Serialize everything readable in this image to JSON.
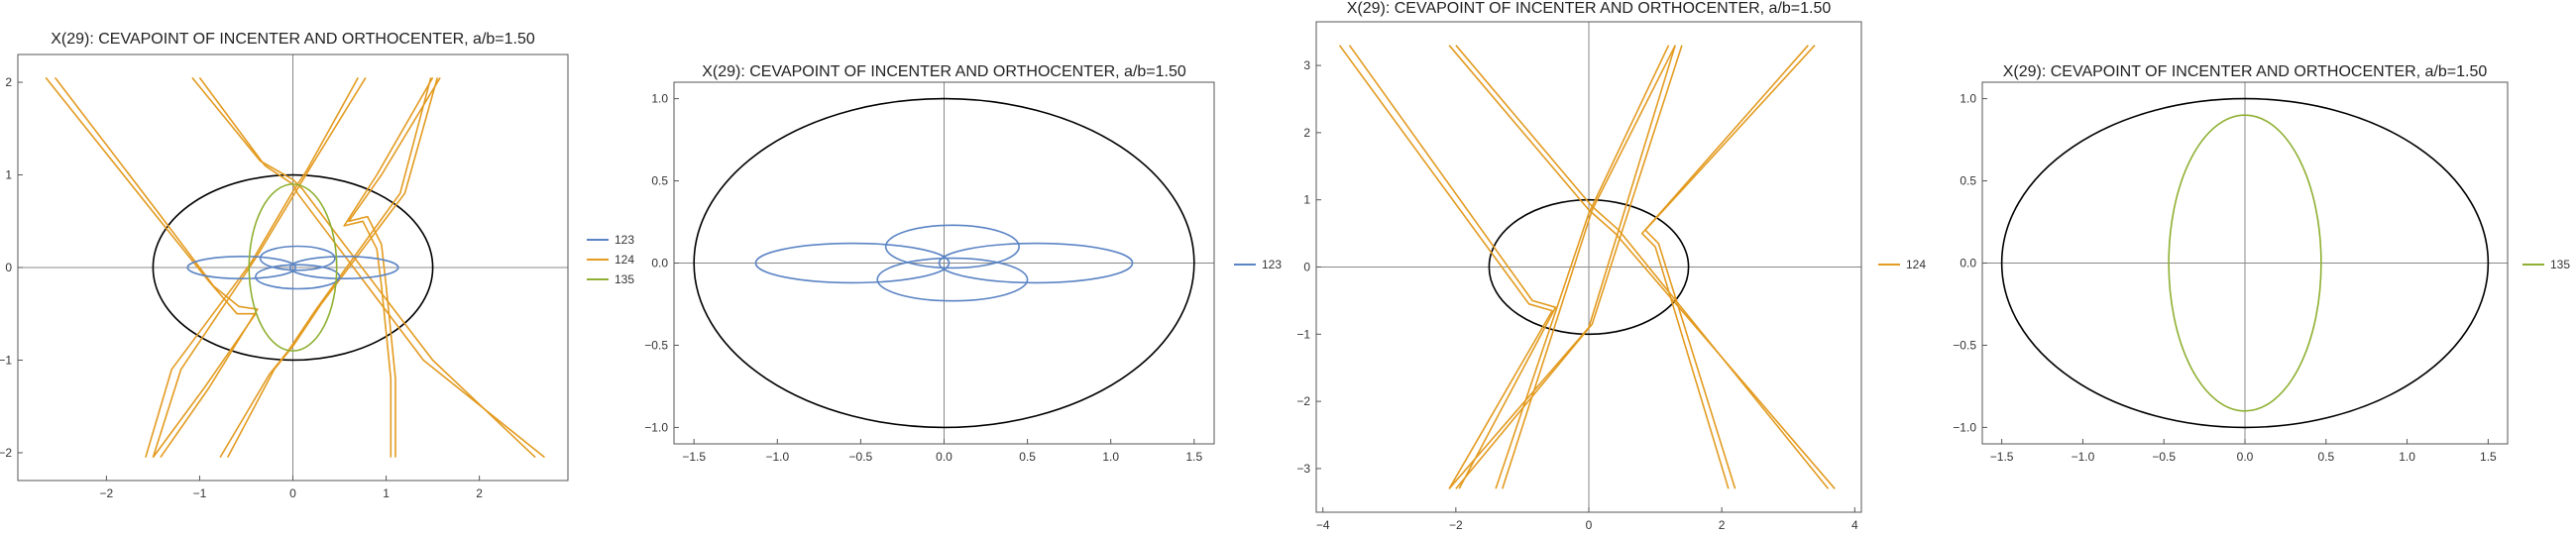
{
  "colors": {
    "series_123": "#5b84c4",
    "series_124": "#e39b20",
    "series_135": "#8fb032",
    "ellipse": "#000000",
    "axis": "#888888",
    "frame": "#555555",
    "text": "#333333"
  },
  "chart_data": [
    {
      "type": "line",
      "title": "X(29): CEVAPOINT OF INCENTER AND ORTHOCENTER, a/b=1.50",
      "xlim": [
        -2.95,
        2.95
      ],
      "ylim": [
        -2.3,
        2.3
      ],
      "xticks": [
        "-2",
        "-1",
        "0",
        "1",
        "2"
      ],
      "yticks": [
        "-2",
        "-1",
        "0",
        "1",
        "2"
      ],
      "grid": false,
      "legend_position": "right",
      "legend": [
        {
          "label": "123",
          "color": "#5b84c4"
        },
        {
          "label": "124",
          "color": "#e39b20"
        },
        {
          "label": "135",
          "color": "#8fb032"
        }
      ],
      "series": [
        "123",
        "124",
        "135"
      ]
    },
    {
      "type": "line",
      "title": "X(29): CEVAPOINT OF INCENTER AND ORTHOCENTER, a/b=1.50",
      "xlim": [
        -1.62,
        1.62
      ],
      "ylim": [
        -1.1,
        1.1
      ],
      "xticks": [
        "-1.5",
        "-1.0",
        "-0.5",
        "0.0",
        "0.5",
        "1.0",
        "1.5"
      ],
      "yticks": [
        "-1.0",
        "-0.5",
        "0.0",
        "0.5",
        "1.0"
      ],
      "grid": false,
      "legend_position": "right",
      "legend": [
        {
          "label": "123",
          "color": "#5b84c4"
        }
      ],
      "series": [
        "123"
      ]
    },
    {
      "type": "line",
      "title": "X(29): CEVAPOINT OF INCENTER AND ORTHOCENTER, a/b=1.50",
      "xlim": [
        -4.1,
        4.1
      ],
      "ylim": [
        -3.65,
        3.65
      ],
      "xticks": [
        "-4",
        "-2",
        "0",
        "2",
        "4"
      ],
      "yticks": [
        "-3",
        "-2",
        "-1",
        "0",
        "1",
        "2",
        "3"
      ],
      "grid": false,
      "legend_position": "right",
      "legend": [
        {
          "label": "124",
          "color": "#e39b20"
        }
      ],
      "series": [
        "124"
      ]
    },
    {
      "type": "line",
      "title": "X(29): CEVAPOINT OF INCENTER AND ORTHOCENTER, a/b=1.50",
      "xlim": [
        -1.62,
        1.62
      ],
      "ylim": [
        -1.1,
        1.1
      ],
      "xticks": [
        "-1.5",
        "-1.0",
        "-0.5",
        "0.0",
        "0.5",
        "1.0",
        "1.5"
      ],
      "yticks": [
        "-1.0",
        "-0.5",
        "0.0",
        "0.5",
        "1.0"
      ],
      "grid": false,
      "legend_position": "right",
      "legend": [
        {
          "label": "135",
          "color": "#8fb032"
        }
      ],
      "series": [
        "135"
      ]
    }
  ],
  "curves": {
    "ellipse": {
      "a": 1.5,
      "b": 1.0
    },
    "123": [
      {
        "cx": -0.55,
        "cy": 0.0,
        "rx": 0.58,
        "ry": 0.12
      },
      {
        "cx": 0.55,
        "cy": 0.0,
        "rx": 0.58,
        "ry": 0.12
      },
      {
        "cx": 0.05,
        "cy": 0.1,
        "rx": 0.4,
        "ry": 0.13
      },
      {
        "cx": 0.05,
        "cy": -0.1,
        "rx": 0.45,
        "ry": 0.13
      }
    ],
    "135": [
      {
        "cx": 0.0,
        "cy": 0.0,
        "rx": 0.47,
        "ry": 0.9
      }
    ],
    "124": [
      [
        [
          -2.65,
          2.05
        ],
        [
          -1.5,
          0.6
        ],
        [
          -0.9,
          -0.15
        ],
        [
          -0.6,
          -0.5
        ],
        [
          -0.4,
          -0.5
        ],
        [
          -0.95,
          -1.3
        ],
        [
          -1.5,
          -2.05
        ]
      ],
      [
        [
          -2.55,
          2.05
        ],
        [
          -1.45,
          0.6
        ],
        [
          -0.85,
          -0.2
        ],
        [
          -0.58,
          -0.42
        ],
        [
          -0.38,
          -0.45
        ],
        [
          -0.9,
          -1.3
        ],
        [
          -1.42,
          -2.05
        ]
      ],
      [
        [
          -1.0,
          2.05
        ],
        [
          -0.3,
          1.1
        ],
        [
          0.0,
          0.9
        ],
        [
          0.05,
          0.8
        ],
        [
          0.5,
          0.2
        ],
        [
          1.4,
          -1.0
        ],
        [
          2.7,
          -2.05
        ]
      ],
      [
        [
          -1.08,
          2.05
        ],
        [
          -0.35,
          1.15
        ],
        [
          0.0,
          0.95
        ],
        [
          0.1,
          0.85
        ],
        [
          0.55,
          0.25
        ],
        [
          1.5,
          -1.0
        ],
        [
          2.6,
          -2.05
        ]
      ],
      [
        [
          0.78,
          2.05
        ],
        [
          0.2,
          1.1
        ],
        [
          0.05,
          0.85
        ],
        [
          -0.4,
          0.1
        ],
        [
          -1.2,
          -1.1
        ],
        [
          -1.5,
          -2.05
        ]
      ],
      [
        [
          0.7,
          2.05
        ],
        [
          0.15,
          1.05
        ],
        [
          0.0,
          0.82
        ],
        [
          -0.45,
          0.05
        ],
        [
          -1.3,
          -1.1
        ],
        [
          -1.58,
          -2.05
        ]
      ],
      [
        [
          1.5,
          2.05
        ],
        [
          0.9,
          1.0
        ],
        [
          0.55,
          0.45
        ],
        [
          0.75,
          0.5
        ],
        [
          0.9,
          0.2
        ],
        [
          0.95,
          -0.2
        ],
        [
          1.05,
          -1.2
        ],
        [
          1.05,
          -2.05
        ]
      ],
      [
        [
          1.58,
          2.05
        ],
        [
          0.95,
          1.0
        ],
        [
          0.6,
          0.5
        ],
        [
          0.8,
          0.55
        ],
        [
          0.95,
          0.25
        ],
        [
          1.0,
          -0.2
        ],
        [
          1.1,
          -1.2
        ],
        [
          1.1,
          -2.05
        ]
      ],
      [
        [
          -0.7,
          -2.05
        ],
        [
          -0.2,
          -1.1
        ],
        [
          0.0,
          -0.85
        ],
        [
          0.3,
          -0.4
        ],
        [
          1.2,
          0.8
        ],
        [
          1.55,
          2.05
        ]
      ],
      [
        [
          -0.78,
          -2.05
        ],
        [
          -0.25,
          -1.15
        ],
        [
          -0.05,
          -0.9
        ],
        [
          0.25,
          -0.45
        ],
        [
          1.15,
          0.8
        ],
        [
          1.48,
          2.05
        ]
      ]
    ],
    "124_zoomout": [
      [
        [
          -3.75,
          3.3
        ],
        [
          -0.9,
          -0.55
        ],
        [
          -0.55,
          -0.65
        ],
        [
          -2.1,
          -3.3
        ]
      ],
      [
        [
          -3.6,
          3.3
        ],
        [
          -0.85,
          -0.5
        ],
        [
          -0.5,
          -0.6
        ],
        [
          -1.95,
          -3.3
        ]
      ],
      [
        [
          -2.1,
          3.3
        ],
        [
          0.0,
          0.85
        ],
        [
          0.4,
          0.5
        ],
        [
          3.7,
          -3.3
        ]
      ],
      [
        [
          -2.0,
          3.3
        ],
        [
          0.05,
          0.9
        ],
        [
          0.45,
          0.55
        ],
        [
          3.6,
          -3.3
        ]
      ],
      [
        [
          1.3,
          3.3
        ],
        [
          0.05,
          0.85
        ],
        [
          -1.3,
          -3.3
        ]
      ],
      [
        [
          1.2,
          3.3
        ],
        [
          0.0,
          0.8
        ],
        [
          -1.4,
          -3.3
        ]
      ],
      [
        [
          3.3,
          3.3
        ],
        [
          0.8,
          0.5
        ],
        [
          1.0,
          0.3
        ],
        [
          2.1,
          -3.3
        ]
      ],
      [
        [
          3.4,
          3.3
        ],
        [
          0.85,
          0.55
        ],
        [
          1.05,
          0.35
        ],
        [
          2.2,
          -3.3
        ]
      ],
      [
        [
          -2.1,
          -3.3
        ],
        [
          0.0,
          -0.9
        ],
        [
          1.3,
          3.3
        ]
      ],
      [
        [
          -2.0,
          -3.3
        ],
        [
          0.05,
          -0.85
        ],
        [
          1.4,
          3.3
        ]
      ]
    ]
  }
}
